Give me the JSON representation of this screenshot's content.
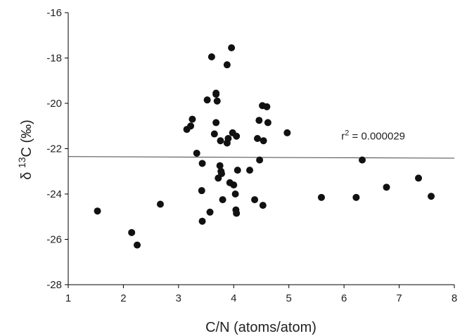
{
  "chart_data": {
    "type": "scatter",
    "title": "",
    "xlabel": "C/N (atoms/atom)",
    "ylabel": "δ 13C  (‰)",
    "ylabel_parts": {
      "prefix": "δ ",
      "sup": "13",
      "suffix": "C  (‰)"
    },
    "xlim": [
      1,
      8
    ],
    "ylim": [
      -28,
      -16
    ],
    "xticks": [
      "1",
      "2",
      "3",
      "4",
      "5",
      "6",
      "7",
      "8"
    ],
    "yticks": [
      "-16",
      "-18",
      "-20",
      "-22",
      "-24",
      "-26",
      "-28"
    ],
    "grid": false,
    "legend": "none",
    "trendline": {
      "x": [
        1,
        8
      ],
      "y": [
        -22.35,
        -22.42
      ]
    },
    "annotation": {
      "text_r": "r",
      "text_sup": "2",
      "text_rest": " = 0.000029",
      "x": 5.95,
      "y": -21.6
    },
    "marker_color": "#111111",
    "points": [
      [
        1.53,
        -24.75
      ],
      [
        2.15,
        -25.7
      ],
      [
        2.25,
        -26.25
      ],
      [
        2.67,
        -24.45
      ],
      [
        3.15,
        -21.15
      ],
      [
        3.22,
        -21.0
      ],
      [
        3.25,
        -20.7
      ],
      [
        3.33,
        -22.2
      ],
      [
        3.42,
        -23.85
      ],
      [
        3.43,
        -22.65
      ],
      [
        3.43,
        -25.2
      ],
      [
        3.52,
        -19.85
      ],
      [
        3.57,
        -24.8
      ],
      [
        3.6,
        -17.95
      ],
      [
        3.65,
        -21.35
      ],
      [
        3.68,
        -19.6
      ],
      [
        3.68,
        -19.55
      ],
      [
        3.68,
        -20.85
      ],
      [
        3.7,
        -19.9
      ],
      [
        3.72,
        -23.3
      ],
      [
        3.75,
        -22.75
      ],
      [
        3.76,
        -21.65
      ],
      [
        3.77,
        -23.0
      ],
      [
        3.78,
        -23.1
      ],
      [
        3.8,
        -24.25
      ],
      [
        3.88,
        -18.3
      ],
      [
        3.88,
        -21.75
      ],
      [
        3.9,
        -21.55
      ],
      [
        3.93,
        -23.5
      ],
      [
        3.96,
        -17.55
      ],
      [
        3.98,
        -21.3
      ],
      [
        4.0,
        -23.6
      ],
      [
        4.03,
        -24.0
      ],
      [
        4.04,
        -24.7
      ],
      [
        4.05,
        -24.85
      ],
      [
        4.05,
        -21.45
      ],
      [
        4.07,
        -22.95
      ],
      [
        4.29,
        -22.95
      ],
      [
        4.38,
        -24.25
      ],
      [
        4.43,
        -21.55
      ],
      [
        4.46,
        -20.75
      ],
      [
        4.47,
        -22.5
      ],
      [
        4.52,
        -20.1
      ],
      [
        4.53,
        -24.5
      ],
      [
        4.54,
        -21.65
      ],
      [
        4.6,
        -20.15
      ],
      [
        4.62,
        -20.85
      ],
      [
        4.97,
        -21.3
      ],
      [
        5.59,
        -24.15
      ],
      [
        6.22,
        -24.15
      ],
      [
        6.33,
        -22.5
      ],
      [
        6.77,
        -23.7
      ],
      [
        7.35,
        -23.3
      ],
      [
        7.58,
        -24.1
      ]
    ]
  }
}
